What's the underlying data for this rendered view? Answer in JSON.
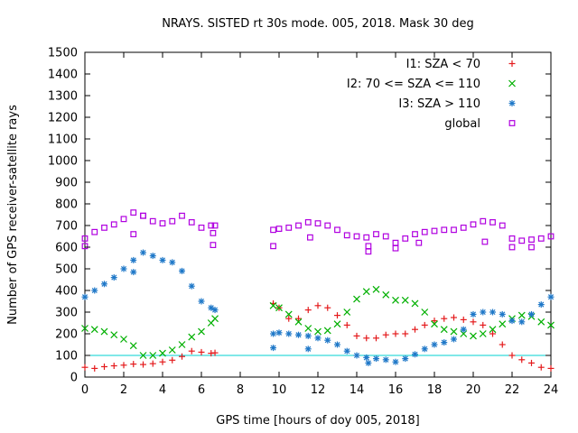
{
  "chart_data": {
    "type": "scatter",
    "title": "NRAYS. SISTED rt 30s mode. 005, 2018. Mask 30 deg",
    "xlabel": "GPS time [hours of doy 005, 2018]",
    "ylabel": "Number of GPS receiver-satellite rays",
    "xlim": [
      0,
      24
    ],
    "ylim": [
      0,
      1500
    ],
    "xticks": [
      "0",
      "2",
      "4",
      "6",
      "8",
      "10",
      "12",
      "14",
      "16",
      "18",
      "20",
      "22",
      "24"
    ],
    "yticks": [
      "0",
      "100",
      "200",
      "300",
      "400",
      "500",
      "600",
      "700",
      "800",
      "900",
      "1000",
      "1100",
      "1200",
      "1300",
      "1400",
      "1500"
    ],
    "legend_position": "top-right",
    "reference_line": {
      "y": 100,
      "color": "#00d0d0"
    },
    "series": [
      {
        "name": "I1: SZA < 70",
        "marker": "plus",
        "color": "#e41a1c",
        "points": [
          [
            0.0,
            45
          ],
          [
            0.5,
            40
          ],
          [
            1.0,
            48
          ],
          [
            1.5,
            52
          ],
          [
            2.0,
            55
          ],
          [
            2.5,
            60
          ],
          [
            3.0,
            58
          ],
          [
            3.5,
            62
          ],
          [
            4.0,
            70
          ],
          [
            4.5,
            78
          ],
          [
            5.0,
            95
          ],
          [
            5.5,
            120
          ],
          [
            6.0,
            115
          ],
          [
            6.5,
            110
          ],
          [
            6.7,
            112
          ],
          [
            9.7,
            340
          ],
          [
            10.0,
            320
          ],
          [
            10.5,
            270
          ],
          [
            11.0,
            270
          ],
          [
            11.5,
            310
          ],
          [
            12.0,
            330
          ],
          [
            12.5,
            320
          ],
          [
            13.0,
            285
          ],
          [
            13.5,
            240
          ],
          [
            14.0,
            190
          ],
          [
            14.5,
            180
          ],
          [
            15.0,
            180
          ],
          [
            15.5,
            195
          ],
          [
            16.0,
            200
          ],
          [
            16.5,
            200
          ],
          [
            17.0,
            220
          ],
          [
            17.5,
            240
          ],
          [
            18.0,
            260
          ],
          [
            18.5,
            270
          ],
          [
            19.0,
            275
          ],
          [
            19.5,
            265
          ],
          [
            20.0,
            255
          ],
          [
            20.5,
            240
          ],
          [
            21.0,
            200
          ],
          [
            21.5,
            150
          ],
          [
            22.0,
            100
          ],
          [
            22.5,
            80
          ],
          [
            23.0,
            65
          ],
          [
            23.5,
            45
          ],
          [
            24.0,
            40
          ]
        ]
      },
      {
        "name": "I2: 70 <= SZA <= 110",
        "marker": "cross",
        "color": "#00b000",
        "points": [
          [
            0.0,
            225
          ],
          [
            0.5,
            220
          ],
          [
            1.0,
            210
          ],
          [
            1.5,
            195
          ],
          [
            2.0,
            175
          ],
          [
            2.5,
            145
          ],
          [
            3.0,
            100
          ],
          [
            3.5,
            100
          ],
          [
            4.0,
            110
          ],
          [
            4.5,
            125
          ],
          [
            5.0,
            150
          ],
          [
            5.5,
            185
          ],
          [
            6.0,
            210
          ],
          [
            6.5,
            250
          ],
          [
            6.7,
            270
          ],
          [
            9.7,
            330
          ],
          [
            10.0,
            320
          ],
          [
            10.5,
            290
          ],
          [
            11.0,
            255
          ],
          [
            11.5,
            225
          ],
          [
            12.0,
            210
          ],
          [
            12.5,
            215
          ],
          [
            13.0,
            245
          ],
          [
            13.5,
            300
          ],
          [
            14.0,
            360
          ],
          [
            14.5,
            395
          ],
          [
            15.0,
            405
          ],
          [
            15.5,
            380
          ],
          [
            16.0,
            355
          ],
          [
            16.5,
            355
          ],
          [
            17.0,
            340
          ],
          [
            17.5,
            300
          ],
          [
            18.0,
            245
          ],
          [
            18.5,
            220
          ],
          [
            19.0,
            210
          ],
          [
            19.5,
            200
          ],
          [
            20.0,
            190
          ],
          [
            20.5,
            200
          ],
          [
            21.0,
            220
          ],
          [
            21.5,
            245
          ],
          [
            22.0,
            270
          ],
          [
            22.5,
            285
          ],
          [
            23.0,
            280
          ],
          [
            23.5,
            255
          ],
          [
            24.0,
            240
          ]
        ]
      },
      {
        "name": "I3: SZA > 110",
        "marker": "star",
        "color": "#1f78c8",
        "points": [
          [
            0.0,
            370
          ],
          [
            0.5,
            400
          ],
          [
            1.0,
            430
          ],
          [
            1.5,
            460
          ],
          [
            2.0,
            500
          ],
          [
            2.5,
            540
          ],
          [
            3.0,
            575
          ],
          [
            3.5,
            560
          ],
          [
            4.0,
            540
          ],
          [
            4.5,
            530
          ],
          [
            5.0,
            490
          ],
          [
            5.5,
            420
          ],
          [
            6.0,
            350
          ],
          [
            6.5,
            320
          ],
          [
            6.7,
            310
          ],
          [
            9.7,
            200
          ],
          [
            10.0,
            205
          ],
          [
            10.5,
            200
          ],
          [
            11.0,
            195
          ],
          [
            11.5,
            190
          ],
          [
            12.0,
            180
          ],
          [
            12.5,
            170
          ],
          [
            13.0,
            150
          ],
          [
            13.5,
            120
          ],
          [
            14.0,
            100
          ],
          [
            14.5,
            90
          ],
          [
            15.0,
            85
          ],
          [
            15.5,
            80
          ],
          [
            16.0,
            70
          ],
          [
            16.5,
            85
          ],
          [
            17.0,
            105
          ],
          [
            17.5,
            130
          ],
          [
            18.0,
            150
          ],
          [
            18.5,
            160
          ],
          [
            19.0,
            175
          ],
          [
            19.5,
            220
          ],
          [
            20.0,
            290
          ],
          [
            20.5,
            300
          ],
          [
            21.0,
            300
          ],
          [
            21.5,
            290
          ],
          [
            22.0,
            260
          ],
          [
            22.5,
            255
          ],
          [
            23.0,
            290
          ],
          [
            23.5,
            335
          ],
          [
            24.0,
            370
          ],
          [
            2.5,
            485
          ],
          [
            9.7,
            135
          ],
          [
            11.5,
            130
          ],
          [
            14.6,
            65
          ]
        ]
      },
      {
        "name": "global",
        "marker": "square",
        "color": "#b000e0",
        "points": [
          [
            0.0,
            640
          ],
          [
            0.5,
            670
          ],
          [
            1.0,
            690
          ],
          [
            1.5,
            705
          ],
          [
            2.0,
            730
          ],
          [
            2.5,
            760
          ],
          [
            3.0,
            745
          ],
          [
            3.5,
            720
          ],
          [
            4.0,
            710
          ],
          [
            4.5,
            720
          ],
          [
            5.0,
            745
          ],
          [
            5.5,
            715
          ],
          [
            6.0,
            690
          ],
          [
            6.5,
            700
          ],
          [
            6.7,
            700
          ],
          [
            9.7,
            680
          ],
          [
            10.0,
            685
          ],
          [
            10.5,
            690
          ],
          [
            11.0,
            700
          ],
          [
            11.5,
            715
          ],
          [
            12.0,
            710
          ],
          [
            12.5,
            700
          ],
          [
            13.0,
            680
          ],
          [
            13.5,
            655
          ],
          [
            14.0,
            650
          ],
          [
            14.5,
            645
          ],
          [
            15.0,
            660
          ],
          [
            15.5,
            650
          ],
          [
            16.0,
            620
          ],
          [
            16.5,
            640
          ],
          [
            17.0,
            660
          ],
          [
            17.5,
            670
          ],
          [
            18.0,
            675
          ],
          [
            18.5,
            680
          ],
          [
            19.0,
            680
          ],
          [
            19.5,
            690
          ],
          [
            20.0,
            705
          ],
          [
            20.5,
            720
          ],
          [
            21.0,
            715
          ],
          [
            21.5,
            700
          ],
          [
            22.0,
            640
          ],
          [
            22.5,
            630
          ],
          [
            23.0,
            635
          ],
          [
            23.5,
            640
          ],
          [
            24.0,
            650
          ],
          [
            0.0,
            605
          ],
          [
            2.5,
            660
          ],
          [
            3.0,
            745
          ],
          [
            6.6,
            665
          ],
          [
            6.6,
            610
          ],
          [
            9.7,
            605
          ],
          [
            11.6,
            645
          ],
          [
            14.6,
            605
          ],
          [
            14.6,
            580
          ],
          [
            16.0,
            595
          ],
          [
            17.2,
            620
          ],
          [
            20.6,
            625
          ],
          [
            22.0,
            600
          ],
          [
            23.0,
            600
          ]
        ]
      }
    ]
  }
}
